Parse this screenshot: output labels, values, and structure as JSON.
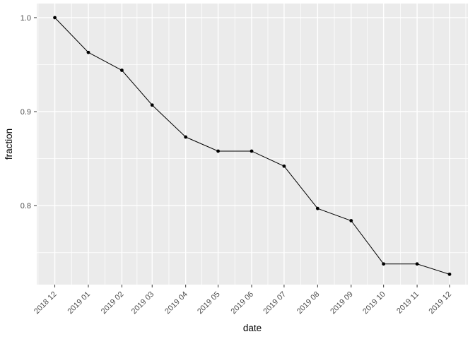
{
  "chart_data": {
    "type": "line",
    "title": "",
    "xlabel": "date",
    "ylabel": "fraction",
    "categories": [
      "2018 12",
      "2019 01",
      "2019 02",
      "2019 03",
      "2019 04",
      "2019 05",
      "2019 06",
      "2019 07",
      "2019 08",
      "2019 09",
      "2019 10",
      "2019 11",
      "2019 12"
    ],
    "x_day_offsets": [
      0,
      31,
      62,
      90,
      121,
      151,
      182,
      212,
      243,
      274,
      304,
      335,
      365
    ],
    "values": [
      1.0,
      0.963,
      0.944,
      0.907,
      0.873,
      0.858,
      0.858,
      0.842,
      0.797,
      0.784,
      0.738,
      0.738,
      0.727
    ],
    "y_ticks": [
      1.0,
      0.9,
      0.8
    ],
    "y_tick_labels": [
      "1.0",
      "0.9",
      "0.8"
    ],
    "y_minor_ticks": [
      0.95,
      0.85,
      0.75
    ],
    "ylim": [
      0.716,
      1.015
    ],
    "xlim_days": [
      -16.7,
      382
    ],
    "x_tick_angle": -45,
    "grid": true,
    "legend": "none",
    "marker": "point",
    "colors": {
      "figure_background": "#ffffff",
      "panel_background": "#ebebeb",
      "grid_major": "#ffffff",
      "grid_minor": "#ffffff",
      "line": "#000000",
      "point": "#000000",
      "axis_text": "#4d4d4d",
      "tick_mark": "#333333",
      "axis_title": "#000000"
    }
  }
}
